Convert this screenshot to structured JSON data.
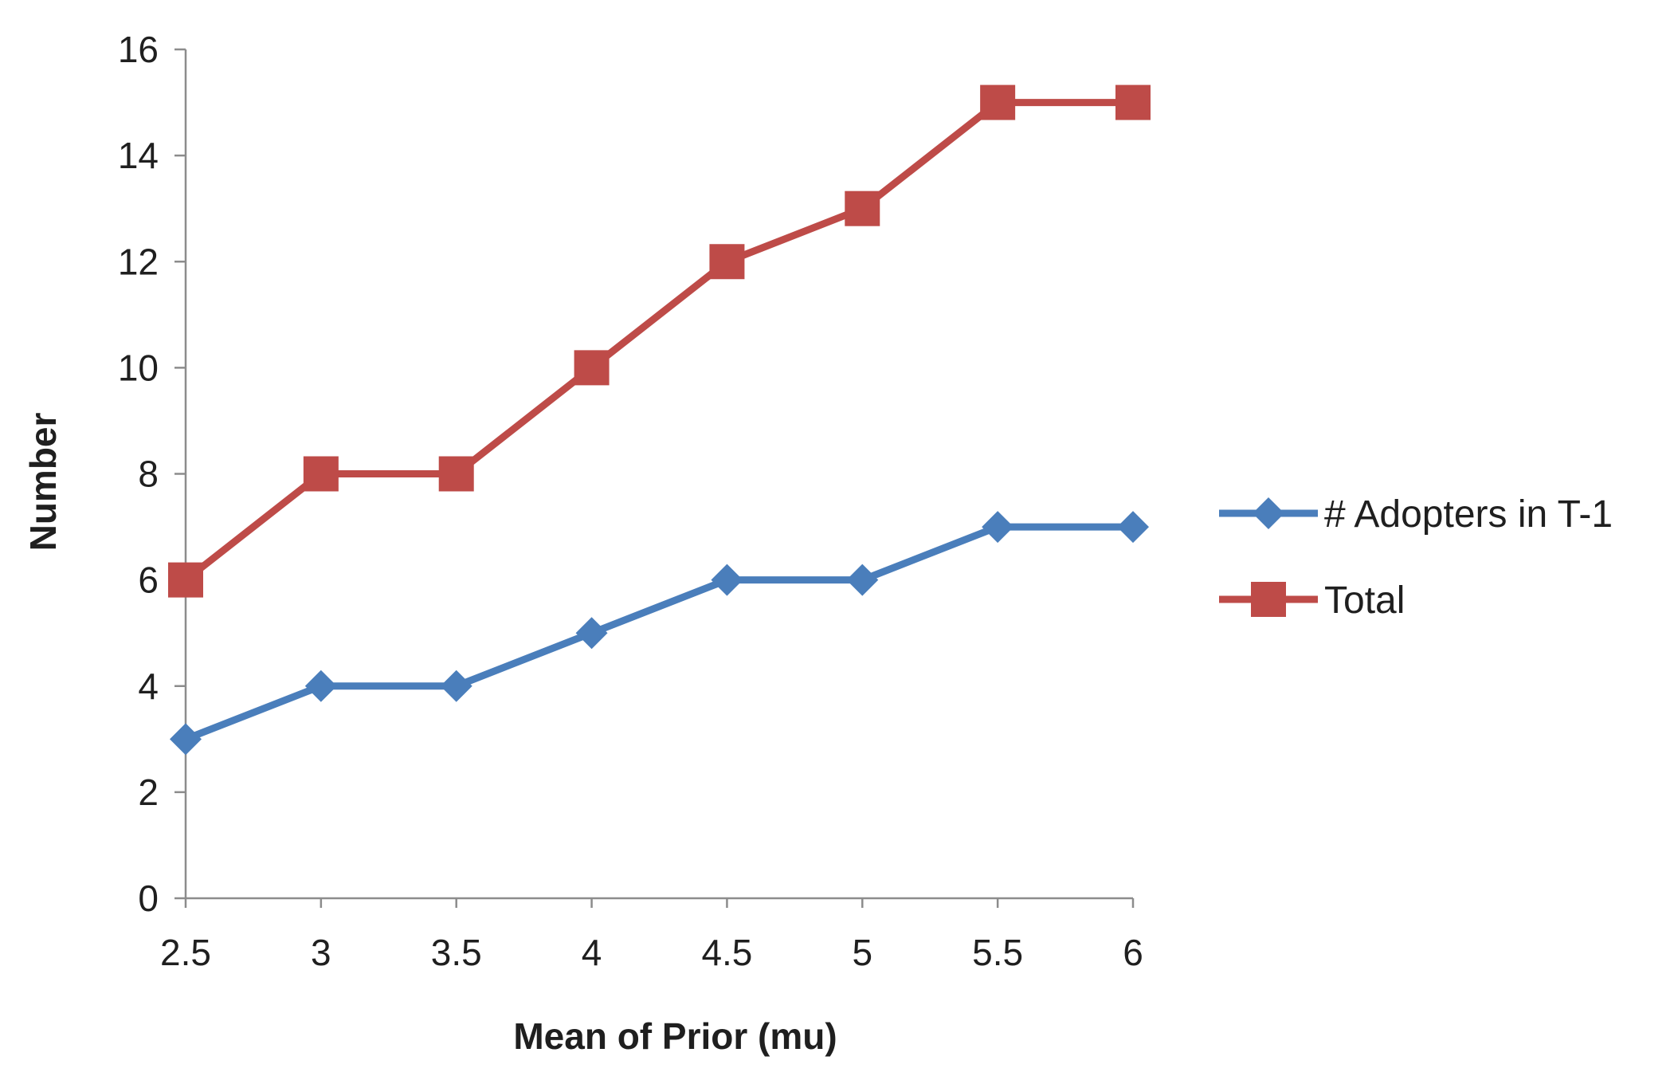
{
  "chart_data": {
    "type": "line",
    "title": "",
    "xlabel": "Mean of Prior (mu)",
    "ylabel": "Number",
    "x": [
      "2.5",
      "3",
      "3.5",
      "4",
      "4.5",
      "5",
      "5.5",
      "6"
    ],
    "ylim": [
      0,
      16
    ],
    "yticks": [
      "0",
      "2",
      "4",
      "6",
      "8",
      "10",
      "12",
      "14",
      "16"
    ],
    "grid": false,
    "legend_position": "right",
    "series": [
      {
        "name": "# Adopters in T-1",
        "values": [
          3,
          4,
          4,
          5,
          6,
          6,
          7,
          7
        ],
        "color": "#4a7ebb",
        "marker": "diamond"
      },
      {
        "name": "Total",
        "values": [
          6,
          8,
          8,
          10,
          12,
          13,
          15,
          15
        ],
        "color": "#be4b48",
        "marker": "square"
      }
    ]
  }
}
